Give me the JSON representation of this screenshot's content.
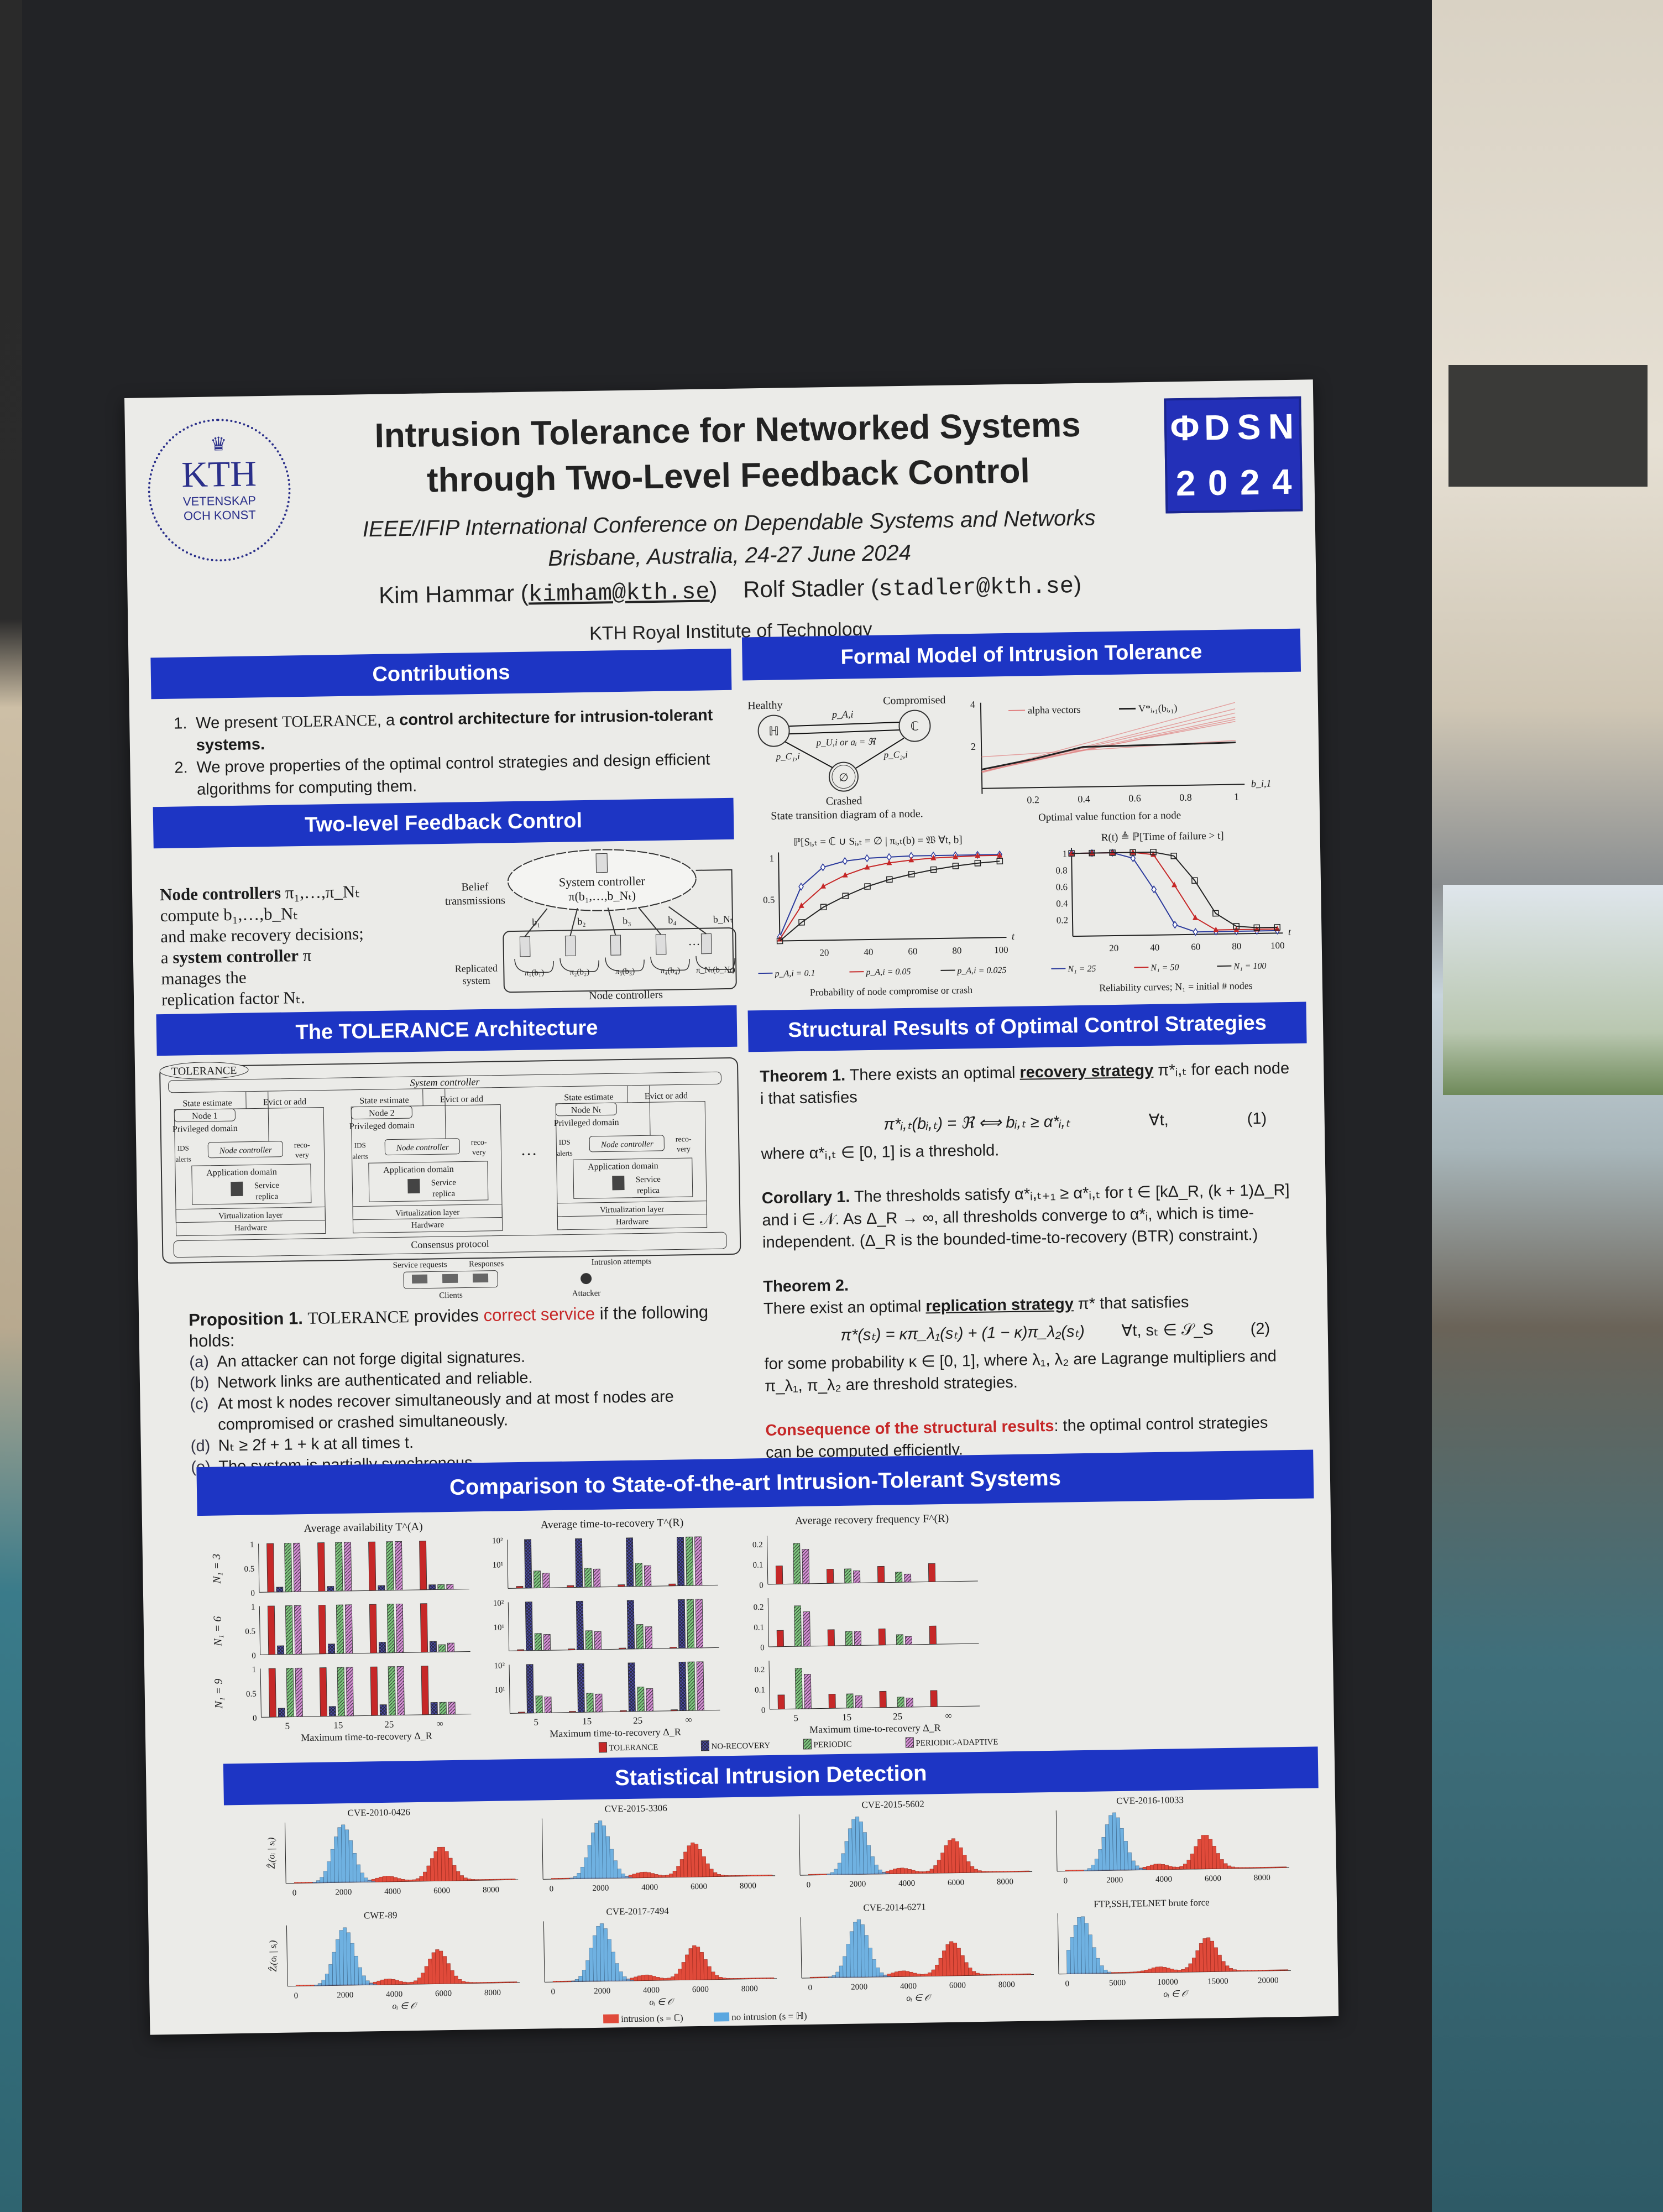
{
  "colors": {
    "banner": "#1d35c4",
    "poster": "#ebebe8",
    "accent_red": "#c62828",
    "board": "#222326",
    "tolerance": "#c62828",
    "no_recovery": "#4a4aa8",
    "periodic": "#7fc97f",
    "periodic_adaptive": "#d68fd6",
    "intrusion": "#e04a3a",
    "no_intrusion": "#5aa7e0"
  },
  "header": {
    "title_line1": "Intrusion Tolerance for Networked Systems",
    "title_line2": "through Two-Level Feedback Control",
    "conference": "IEEE/IFIP International Conference on Dependable Systems and Networks",
    "location_date": "Brisbane, Australia, 24-27 June 2024",
    "author1_name": "Kim Hammar",
    "author1_email": "kimham@kth.se",
    "author2_name": "Rolf Stadler",
    "author2_email": "stadler@kth.se",
    "affiliation": "KTH Royal Institute of Technology",
    "kth_logo": {
      "text": "KTH",
      "line2": "VETENSKAP",
      "line3": "OCH KONST"
    },
    "dsn_logo": {
      "chars": [
        "Φ",
        "D",
        "S",
        "N",
        "2",
        "0",
        "2",
        "4"
      ]
    }
  },
  "contributions": {
    "title": "Contributions",
    "item1": {
      "num": "1.",
      "pre": "We present ",
      "sc": "TOLERANCE",
      "mid": ", a ",
      "bold": "control architecture for intrusion-tolerant systems."
    },
    "item2": {
      "num": "2.",
      "text": "We prove properties of the optimal control strategies and design efficient algorithms for computing them."
    }
  },
  "two_level": {
    "title": "Two-level Feedback Control",
    "l1_bold": "Node controllers",
    "l1_rest": " π₁,…,π_Nₜ",
    "l2": "compute b₁,…,b_Nₜ",
    "l3": "and make recovery decisions;",
    "l4_pre": "a ",
    "l4_bold": "system controller",
    "l4_rest": " π",
    "l5": "manages the",
    "l6": "replication factor Nₜ.",
    "diagram": {
      "system_controller": "System controller",
      "system_policy": "π(b₁,…,b_Nₜ)",
      "belief": "Belief",
      "transmissions": "transmissions",
      "beliefs": [
        "b₁",
        "b₂",
        "b₃",
        "b₄",
        "b_Nₜ"
      ],
      "replicated": "Replicated",
      "system": "system",
      "policies": [
        "π₁(b₁)",
        "π₂(b₂)",
        "π₃(b₃)",
        "π₄(b₄)",
        "π_Nₜ(b_Nₜ)"
      ],
      "node_controllers": "Node controllers",
      "dots": "…"
    }
  },
  "architecture": {
    "title": "The TOLERANCE Architecture",
    "tag": "TOLERANCE",
    "system_controller": "System controller",
    "nodes": [
      "Node 1",
      "Node 2",
      "Node Nₜ"
    ],
    "state_estimate": "State estimate",
    "evict_or_add": "Evict or add",
    "privileged": "Privileged domain",
    "ids": "IDS",
    "alerts": "alerts",
    "node_controller": "Node controller",
    "reco": "reco-",
    "very": "very",
    "app_domain": "Application domain",
    "service": "Service",
    "replica": "replica",
    "virt": "Virtualization layer",
    "hardware": "Hardware",
    "consensus": "Consensus protocol",
    "service_requests": "Service requests",
    "responses": "Responses",
    "clients": "Clients",
    "intrusion_attempts": "Intrusion attempts",
    "attacker": "Attacker",
    "dots": "…"
  },
  "proposition": {
    "label": "Proposition 1.",
    "sc": "TOLERANCE",
    "provides": " provides ",
    "correct": "correct service",
    "rest": " if the following holds:",
    "items": [
      {
        "tag": "(a)",
        "text": "An attacker can not forge digital signatures."
      },
      {
        "tag": "(b)",
        "text": "Network links are authenticated and reliable."
      },
      {
        "tag": "(c)",
        "text": "At most k nodes recover simultaneously and at most f nodes are compromised or crashed simultaneously."
      },
      {
        "tag": "(d)",
        "text": "Nₜ ≥ 2f + 1 + k at all times t."
      },
      {
        "tag": "(e)",
        "text": "The system is partially synchronous."
      }
    ]
  },
  "formal_model": {
    "title": "Formal Model of Intrusion Tolerance",
    "state_diagram": {
      "healthy": "Healthy",
      "compromised": "Compromised",
      "crashed": "Crashed",
      "H": "ℍ",
      "C": "ℂ",
      "empty": "∅",
      "pA": "p_A,i",
      "pU": "p_U,i or aᵢ = ℜ",
      "pC1": "p_C₁,i",
      "pC2": "p_C₂,i",
      "caption": "State transition diagram of a node."
    }
  },
  "structural": {
    "title": "Structural Results of Optimal Control Strategies",
    "th1_label": "Theorem 1.",
    "th1_pre": " There exists an optimal ",
    "th1_bold": "recovery strategy",
    "th1_rest": " π*ᵢ,ₜ for each node i that satisfies",
    "eq1": "π*ᵢ,ₜ(bᵢ,ₜ) = ℜ ⟺ bᵢ,ₜ ≥ α*ᵢ,ₜ",
    "eq1_q": "∀t,",
    "eq1_num": "(1)",
    "th1_after": "where α*ᵢ,ₜ ∈ [0, 1] is a threshold.",
    "cor_label": "Corollary 1.",
    "cor_text": " The thresholds satisfy α*ᵢ,ₜ₊₁ ≥ α*ᵢ,ₜ for t ∈ [kΔ_R, (k + 1)Δ_R] and i ∈ 𝒩. As Δ_R → ∞, all thresholds converge to α*ᵢ, which is time-independent. (Δ_R is the bounded-time-to-recovery (BTR) constraint.)",
    "th2_label": "Theorem 2.",
    "th2_pre": "There exist an optimal ",
    "th2_bold": "replication strategy",
    "th2_rest": " π* that satisfies",
    "eq2": "π*(sₜ) = κπ_λ₁(sₜ) + (1 − κ)π_λ₂(sₜ)",
    "eq2_q": "∀t, sₜ ∈ 𝒮_S",
    "eq2_num": "(2)",
    "th2_after": "for some probability κ ∈ [0, 1], where λ₁, λ₂ are Lagrange multipliers and π_λ₁, π_λ₂ are threshold strategies.",
    "cons_red": "Consequence of the structural results",
    "cons_rest": ": the optimal control strategies can be computed efficiently."
  },
  "comparison": {
    "title": "Comparison to State-of-the-art Intrusion-Tolerant Systems"
  },
  "detection": {
    "title": "Statistical Intrusion Detection"
  },
  "chart_data": [
    {
      "id": "value_function",
      "type": "line",
      "caption": "Optimal value function for a node",
      "xlabel": "b_i,1",
      "xlim": [
        0,
        1
      ],
      "ylim": [
        0,
        4
      ],
      "xticks": [
        "0.2",
        "0.4",
        "0.6",
        "0.8",
        "1"
      ],
      "yticks": [
        "2",
        "4"
      ],
      "legend": [
        "alpha vectors",
        "V*ᵢ,₁(bᵢ,₁)"
      ],
      "x": [
        0,
        0.2,
        0.4,
        0.6,
        0.8,
        1
      ],
      "values": [
        0.9,
        1.35,
        1.9,
        1.93,
        1.96,
        2.0
      ]
    },
    {
      "id": "compromise_probability",
      "type": "line",
      "title": "ℙ[Sᵢ,ₜ = ℂ ∪ Sᵢ,ₜ = ∅ | πᵢ,ₜ(b) = 𝔚 ∀t, b]",
      "caption": "Probability of node compromise or crash",
      "xlabel": "t",
      "xlim": [
        0,
        100
      ],
      "ylim": [
        0,
        1
      ],
      "xticks": [
        "20",
        "40",
        "60",
        "80",
        "100"
      ],
      "yticks": [
        "0.5",
        "1"
      ],
      "x": [
        0,
        10,
        20,
        30,
        40,
        50,
        60,
        70,
        80,
        90,
        100
      ],
      "series": [
        {
          "name": "p_A,i = 0.1",
          "color": "#2b3a9c",
          "marker": "diamond",
          "values": [
            0.05,
            0.65,
            0.88,
            0.95,
            0.98,
            0.99,
            1,
            1,
            1,
            1,
            1
          ]
        },
        {
          "name": "p_A,i = 0.05",
          "color": "#c62828",
          "marker": "triangle",
          "values": [
            0.02,
            0.42,
            0.65,
            0.78,
            0.87,
            0.92,
            0.95,
            0.97,
            0.98,
            0.99,
            0.99
          ]
        },
        {
          "name": "p_A,i = 0.025",
          "color": "#222222",
          "marker": "square",
          "values": [
            0.0,
            0.22,
            0.4,
            0.53,
            0.64,
            0.72,
            0.78,
            0.83,
            0.87,
            0.9,
            0.92
          ]
        }
      ]
    },
    {
      "id": "reliability",
      "type": "line",
      "title": "R(t) ≜ ℙ[Time of failure > t]",
      "caption": "Reliability curves; N₁ = initial # nodes",
      "xlabel": "t",
      "xlim": [
        0,
        100
      ],
      "ylim": [
        0,
        1
      ],
      "xticks": [
        "20",
        "40",
        "60",
        "80",
        "100"
      ],
      "yticks": [
        "0.2",
        "0.4",
        "0.6",
        "0.8",
        "1"
      ],
      "x": [
        0,
        10,
        20,
        30,
        40,
        50,
        60,
        70,
        80,
        90,
        100
      ],
      "series": [
        {
          "name": "N₁ = 25",
          "color": "#2b3a9c",
          "marker": "diamond",
          "values": [
            1,
            1,
            1,
            0.93,
            0.55,
            0.12,
            0.03,
            0.03,
            0.03,
            0.03,
            0.03
          ]
        },
        {
          "name": "N₁ = 50",
          "color": "#c62828",
          "marker": "triangle",
          "values": [
            1,
            1,
            1,
            1,
            0.97,
            0.6,
            0.2,
            0.05,
            0.05,
            0.05,
            0.05
          ]
        },
        {
          "name": "N₁ = 100",
          "color": "#222222",
          "marker": "square",
          "values": [
            1,
            1,
            1,
            1,
            1,
            0.95,
            0.65,
            0.25,
            0.09,
            0.07,
            0.07
          ]
        }
      ]
    },
    {
      "id": "comparison",
      "type": "bar",
      "categories": [
        "5",
        "15",
        "25",
        "∞"
      ],
      "xlabel": "Maximum time-to-recovery Δ_R",
      "series_names": [
        "TOLERANCE",
        "NO-RECOVERY",
        "PERIODIC",
        "PERIODIC-ADAPTIVE"
      ],
      "metrics": [
        {
          "title": "Average availability T^(A)",
          "scale": "linear",
          "ylim": [
            0,
            1
          ],
          "yticks": [
            "0",
            "0.5",
            "1"
          ]
        },
        {
          "title": "Average time-to-recovery T^(R)",
          "scale": "log",
          "ylim": [
            1,
            100
          ],
          "yticks": [
            "10¹",
            "10²"
          ]
        },
        {
          "title": "Average recovery frequency F^(R)",
          "scale": "linear",
          "ylim": [
            0,
            0.24
          ],
          "yticks": [
            "0",
            "0.1",
            "0.2"
          ]
        }
      ],
      "rows": [
        {
          "label": "N₁ = 3",
          "availability": [
            [
              1,
              0.1,
              1,
              1
            ],
            [
              1,
              0.1,
              1,
              1
            ],
            [
              1,
              0.1,
              1,
              1
            ],
            [
              1,
              0.1,
              0.1,
              0.1
            ]
          ],
          "time_to_recovery": [
            [
              1.2,
              100,
              5,
              4
            ],
            [
              1.2,
              100,
              6,
              5.5
            ],
            [
              1.2,
              100,
              9,
              7
            ],
            [
              1.2,
              100,
              100,
              100
            ]
          ],
          "recovery_frequency": [
            [
              0.09,
              0,
              0.2,
              0.17
            ],
            [
              0.07,
              0,
              0.07,
              0.06
            ],
            [
              0.08,
              0,
              0.05,
              0.04
            ],
            [
              0.09,
              0,
              0,
              0
            ]
          ]
        },
        {
          "label": "N₁ = 6",
          "availability": [
            [
              1,
              0.18,
              1,
              1
            ],
            [
              1,
              0.2,
              1,
              1
            ],
            [
              1,
              0.22,
              1,
              1
            ],
            [
              1,
              0.22,
              0.15,
              0.18
            ]
          ],
          "time_to_recovery": [
            [
              1.1,
              100,
              5,
              4.5
            ],
            [
              1.1,
              100,
              6,
              5.5
            ],
            [
              1.1,
              100,
              10,
              8
            ],
            [
              1.1,
              100,
              100,
              100
            ]
          ],
          "recovery_frequency": [
            [
              0.08,
              0,
              0.2,
              0.17
            ],
            [
              0.08,
              0,
              0.07,
              0.07
            ],
            [
              0.08,
              0,
              0.05,
              0.04
            ],
            [
              0.09,
              0,
              0,
              0
            ]
          ]
        },
        {
          "label": "N₁ = 9",
          "availability": [
            [
              1,
              0.18,
              1,
              1
            ],
            [
              1,
              0.2,
              1,
              1
            ],
            [
              1,
              0.22,
              1,
              1
            ],
            [
              1,
              0.25,
              0.25,
              0.25
            ]
          ],
          "time_to_recovery": [
            [
              1.1,
              100,
              5,
              4.5
            ],
            [
              1.1,
              100,
              6,
              5.5
            ],
            [
              1.1,
              100,
              10,
              8.5
            ],
            [
              1.1,
              100,
              100,
              100
            ]
          ],
          "recovery_frequency": [
            [
              0.07,
              0,
              0.2,
              0.17
            ],
            [
              0.07,
              0,
              0.07,
              0.06
            ],
            [
              0.08,
              0,
              0.05,
              0.045
            ],
            [
              0.08,
              0,
              0,
              0
            ]
          ]
        }
      ]
    },
    {
      "id": "detection",
      "type": "bar",
      "ylabel": "Ẑᵢ(oᵢ | sᵢ)",
      "xlabel": "oᵢ ∈ 𝒪",
      "legend": [
        "intrusion (s = ℂ)",
        "no intrusion (s = ℍ)"
      ],
      "panels": [
        {
          "title": "CVE-2010-0426",
          "xticks": [
            0,
            2000,
            4000,
            6000,
            8000
          ],
          "xmax": 9000,
          "no_intrusion_peak": 2000,
          "intrusion_peak": 6000
        },
        {
          "title": "CVE-2015-3306",
          "xticks": [
            0,
            2000,
            4000,
            6000,
            8000
          ],
          "xmax": 9000,
          "no_intrusion_peak": 2000,
          "intrusion_peak": 5800
        },
        {
          "title": "CVE-2015-5602",
          "xticks": [
            0,
            2000,
            4000,
            6000,
            8000
          ],
          "xmax": 9000,
          "no_intrusion_peak": 2000,
          "intrusion_peak": 5900
        },
        {
          "title": "CVE-2016-10033",
          "xticks": [
            0,
            2000,
            4000,
            6000,
            8000
          ],
          "xmax": 9000,
          "no_intrusion_peak": 2000,
          "intrusion_peak": 5700
        },
        {
          "title": "CWE-89",
          "xticks": [
            0,
            2000,
            4000,
            6000,
            8000
          ],
          "xmax": 9000,
          "no_intrusion_peak": 2000,
          "intrusion_peak": 5800
        },
        {
          "title": "CVE-2017-7494",
          "xticks": [
            0,
            2000,
            4000,
            6000,
            8000
          ],
          "xmax": 9000,
          "no_intrusion_peak": 2000,
          "intrusion_peak": 5800
        },
        {
          "title": "CVE-2014-6271",
          "xticks": [
            0,
            2000,
            4000,
            6000,
            8000
          ],
          "xmax": 9000,
          "no_intrusion_peak": 2000,
          "intrusion_peak": 5800
        },
        {
          "title": "FTP,SSH,TELNET brute force",
          "xticks": [
            0,
            5000,
            10000,
            15000,
            20000
          ],
          "xmax": 22000,
          "no_intrusion_peak": 1500,
          "intrusion_peak": 14000
        }
      ]
    }
  ]
}
